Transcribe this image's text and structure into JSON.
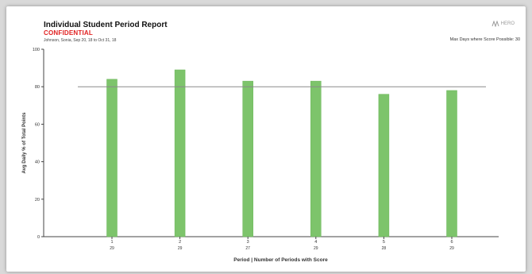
{
  "report": {
    "title": "Individual Student Period Report",
    "confidential": "CONFIDENTIAL",
    "subtitle": "Johnson, Sonia, Sep 20, 18 to Oct 31, 18",
    "max_days": "Max Days where Score Possible: 30",
    "logo_text": "HERO"
  },
  "colors": {
    "bar": "#7dc46b",
    "bar_stroke": "#6ab658",
    "reference_line": "#8a8a8a",
    "axis": "#444444"
  },
  "chart_data": {
    "type": "bar",
    "categories": [
      "1",
      "2",
      "3",
      "4",
      "5",
      "6"
    ],
    "counts": [
      "29",
      "29",
      "27",
      "29",
      "28",
      "29"
    ],
    "values": [
      84,
      89,
      83,
      83,
      76,
      78
    ],
    "reference_line": 80,
    "xlabel": "Period | Number of Periods with Score",
    "ylabel": "Avg Daily % of Total Points",
    "ylim": [
      0,
      100
    ],
    "yticks": [
      0,
      20,
      40,
      60,
      80,
      100
    ]
  }
}
